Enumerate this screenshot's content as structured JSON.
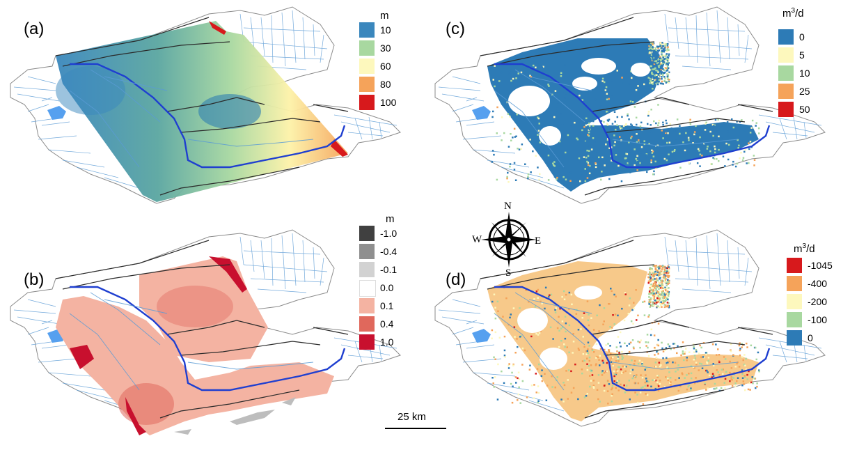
{
  "panels": [
    {
      "label": "(a)",
      "unit": "m",
      "unit_sup": "",
      "unit_post": "",
      "legend": [
        {
          "color": "#3a87bd",
          "label": "10"
        },
        {
          "color": "#a8d8a0",
          "label": "30"
        },
        {
          "color": "#fdf8bd",
          "label": "60"
        },
        {
          "color": "#f5a35a",
          "label": "80"
        },
        {
          "color": "#d7191c",
          "label": "100"
        }
      ]
    },
    {
      "label": "(b)",
      "unit": "m",
      "unit_sup": "",
      "unit_post": "",
      "legend": [
        {
          "color": "#404040",
          "label": "-1.0"
        },
        {
          "color": "#8f8f8f",
          "label": "-0.4"
        },
        {
          "color": "#d2d2d2",
          "label": "-0.1"
        },
        {
          "color": "#ffffff",
          "label": "0.0"
        },
        {
          "color": "#f4b3a2",
          "label": "0.1"
        },
        {
          "color": "#e0685c",
          "label": "0.4"
        },
        {
          "color": "#c8102e",
          "label": "1.0"
        }
      ]
    },
    {
      "label": "(c)",
      "unit": "m",
      "unit_sup": "3",
      "unit_post": "/d",
      "legend": [
        {
          "color": "#2d7bb6",
          "label": "0"
        },
        {
          "color": "#fdf8bd",
          "label": "5"
        },
        {
          "color": "#a8d8a0",
          "label": "10"
        },
        {
          "color": "#f5a35a",
          "label": "25"
        },
        {
          "color": "#d7191c",
          "label": "50"
        }
      ]
    },
    {
      "label": "(d)",
      "unit": "m",
      "unit_sup": "3",
      "unit_post": "/d",
      "legend": [
        {
          "color": "#d7191c",
          "label": "-1045"
        },
        {
          "color": "#f5a35a",
          "label": "-400"
        },
        {
          "color": "#fdf8bd",
          "label": "-200"
        },
        {
          "color": "#a8d8a0",
          "label": "-100"
        },
        {
          "color": "#2d7bb6",
          "label": "0"
        }
      ]
    }
  ],
  "compass": {
    "n": "N",
    "s": "S",
    "e": "E",
    "w": "W"
  },
  "scale_bar": {
    "label": "25 km"
  },
  "colors": {
    "stream": "#5b9bd5",
    "river": "#1f3fd0",
    "lake": "#56a0ef",
    "boundary": "#8a8a8a",
    "subbasin": "#2a2a2a"
  }
}
